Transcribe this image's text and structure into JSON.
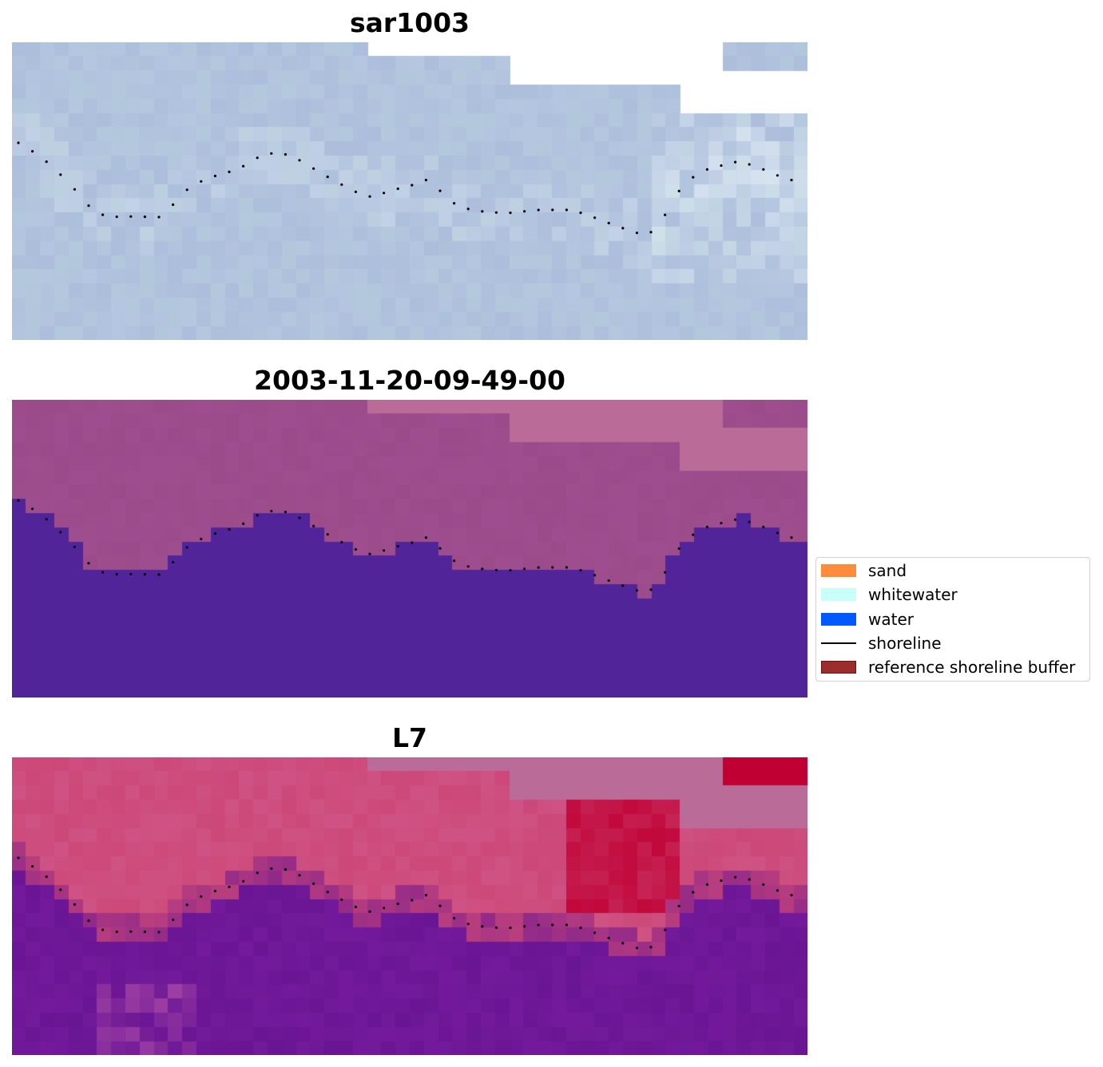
{
  "panels": [
    {
      "title": "sar1003",
      "rendering": "rgb"
    },
    {
      "title": "2003-11-20-09-49-00",
      "rendering": "classification"
    },
    {
      "title": "L7",
      "rendering": "index"
    }
  ],
  "legend": [
    {
      "label": "sand",
      "color": "#ff8c3c",
      "kind": "patch"
    },
    {
      "label": "whitewater",
      "color": "#c8fff8",
      "kind": "patch"
    },
    {
      "label": "water",
      "color": "#005aff",
      "kind": "patch"
    },
    {
      "label": "shoreline",
      "color": "#000000",
      "kind": "line"
    },
    {
      "label": "reference shoreline buffer",
      "color": "#9b2d2d",
      "kind": "patch",
      "edge": "#6e1414"
    }
  ],
  "colors": {
    "nodata": "#ffffff",
    "rgb_base": "#a6b9d8",
    "class_land": "#9b4b8a",
    "class_water": "#52249a",
    "class_buffer_tint": "#bb6b98",
    "index_land": "#cc4878",
    "index_water": "#6a1594",
    "index_peak": "#c00033",
    "shoreline_points": "#000000"
  }
}
